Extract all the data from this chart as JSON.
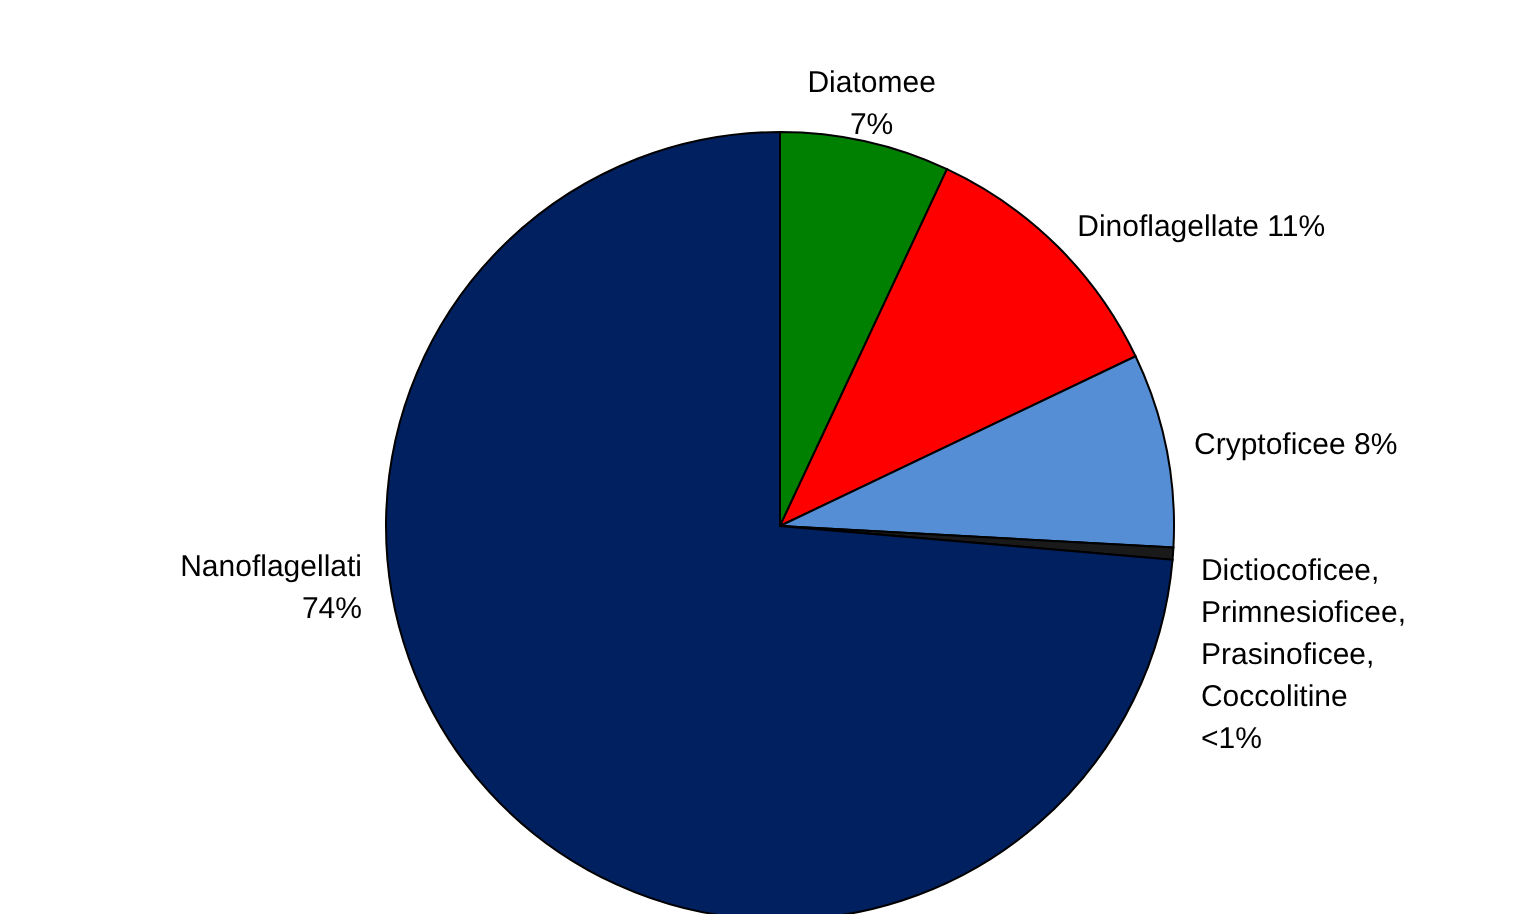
{
  "chart_data": {
    "type": "pie",
    "categories": [
      "Diatomee",
      "Dinoflagellate",
      "Cryptoficee",
      "Dictiocoficee, Primnesioficee, Prasinoficee, Coccolitine",
      "Nanoflagellati"
    ],
    "values": [
      7,
      11,
      8,
      0.5,
      74
    ],
    "value_labels": [
      "7%",
      "11%",
      "8%",
      "<1%",
      "74%"
    ],
    "colors": [
      "#008000",
      "#ff0000",
      "#558ed5",
      "#1a1a1a",
      "#002060"
    ],
    "legend": false
  }
}
